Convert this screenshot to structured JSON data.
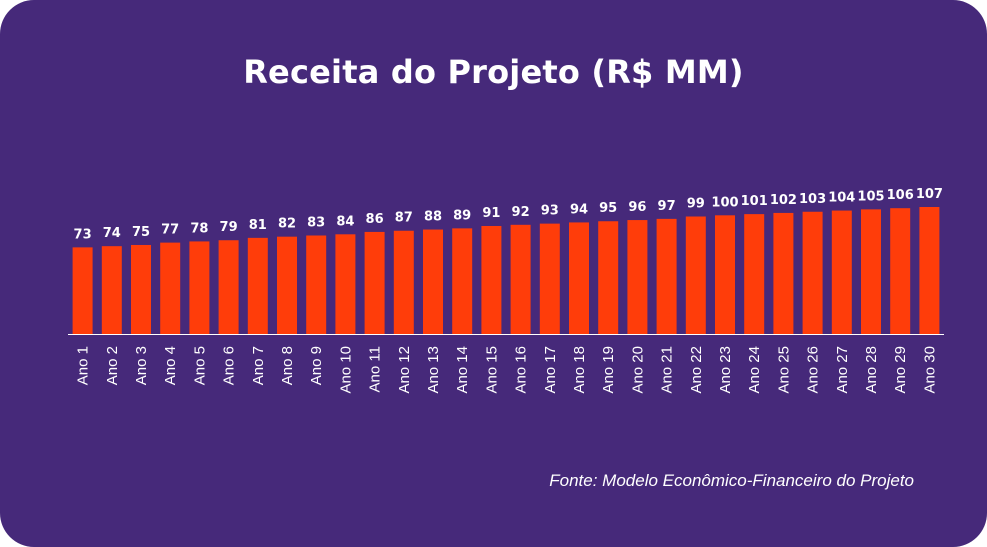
{
  "colors": {
    "background": "#46297a",
    "bar": "#ff3d0a",
    "text": "#ffffff",
    "axis": "#ffffff"
  },
  "header": {
    "title": "Receita do Projeto (R$ MM)"
  },
  "footer": {
    "source": "Fonte: Modelo Econômico-Financeiro do Projeto"
  },
  "chart_data": {
    "type": "bar",
    "title": "Receita do Projeto (R$ MM)",
    "xlabel": "",
    "ylabel": "",
    "grid": false,
    "data_labels": true,
    "categories": [
      "Ano 1",
      "Ano 2",
      "Ano 3",
      "Ano 4",
      "Ano 5",
      "Ano 6",
      "Ano 7",
      "Ano 8",
      "Ano 9",
      "Ano 10",
      "Ano 11",
      "Ano 12",
      "Ano 13",
      "Ano 14",
      "Ano 15",
      "Ano 16",
      "Ano 17",
      "Ano 18",
      "Ano 19",
      "Ano 20",
      "Ano 21",
      "Ano 22",
      "Ano 23",
      "Ano 24",
      "Ano 25",
      "Ano 26",
      "Ano 27",
      "Ano 28",
      "Ano 29",
      "Ano 30"
    ],
    "values": [
      73,
      74,
      75,
      77,
      78,
      79,
      81,
      82,
      83,
      84,
      86,
      87,
      88,
      89,
      91,
      92,
      93,
      94,
      95,
      96,
      97,
      99,
      100,
      101,
      102,
      103,
      104,
      105,
      106,
      107
    ],
    "ylim": [
      0,
      107
    ]
  }
}
